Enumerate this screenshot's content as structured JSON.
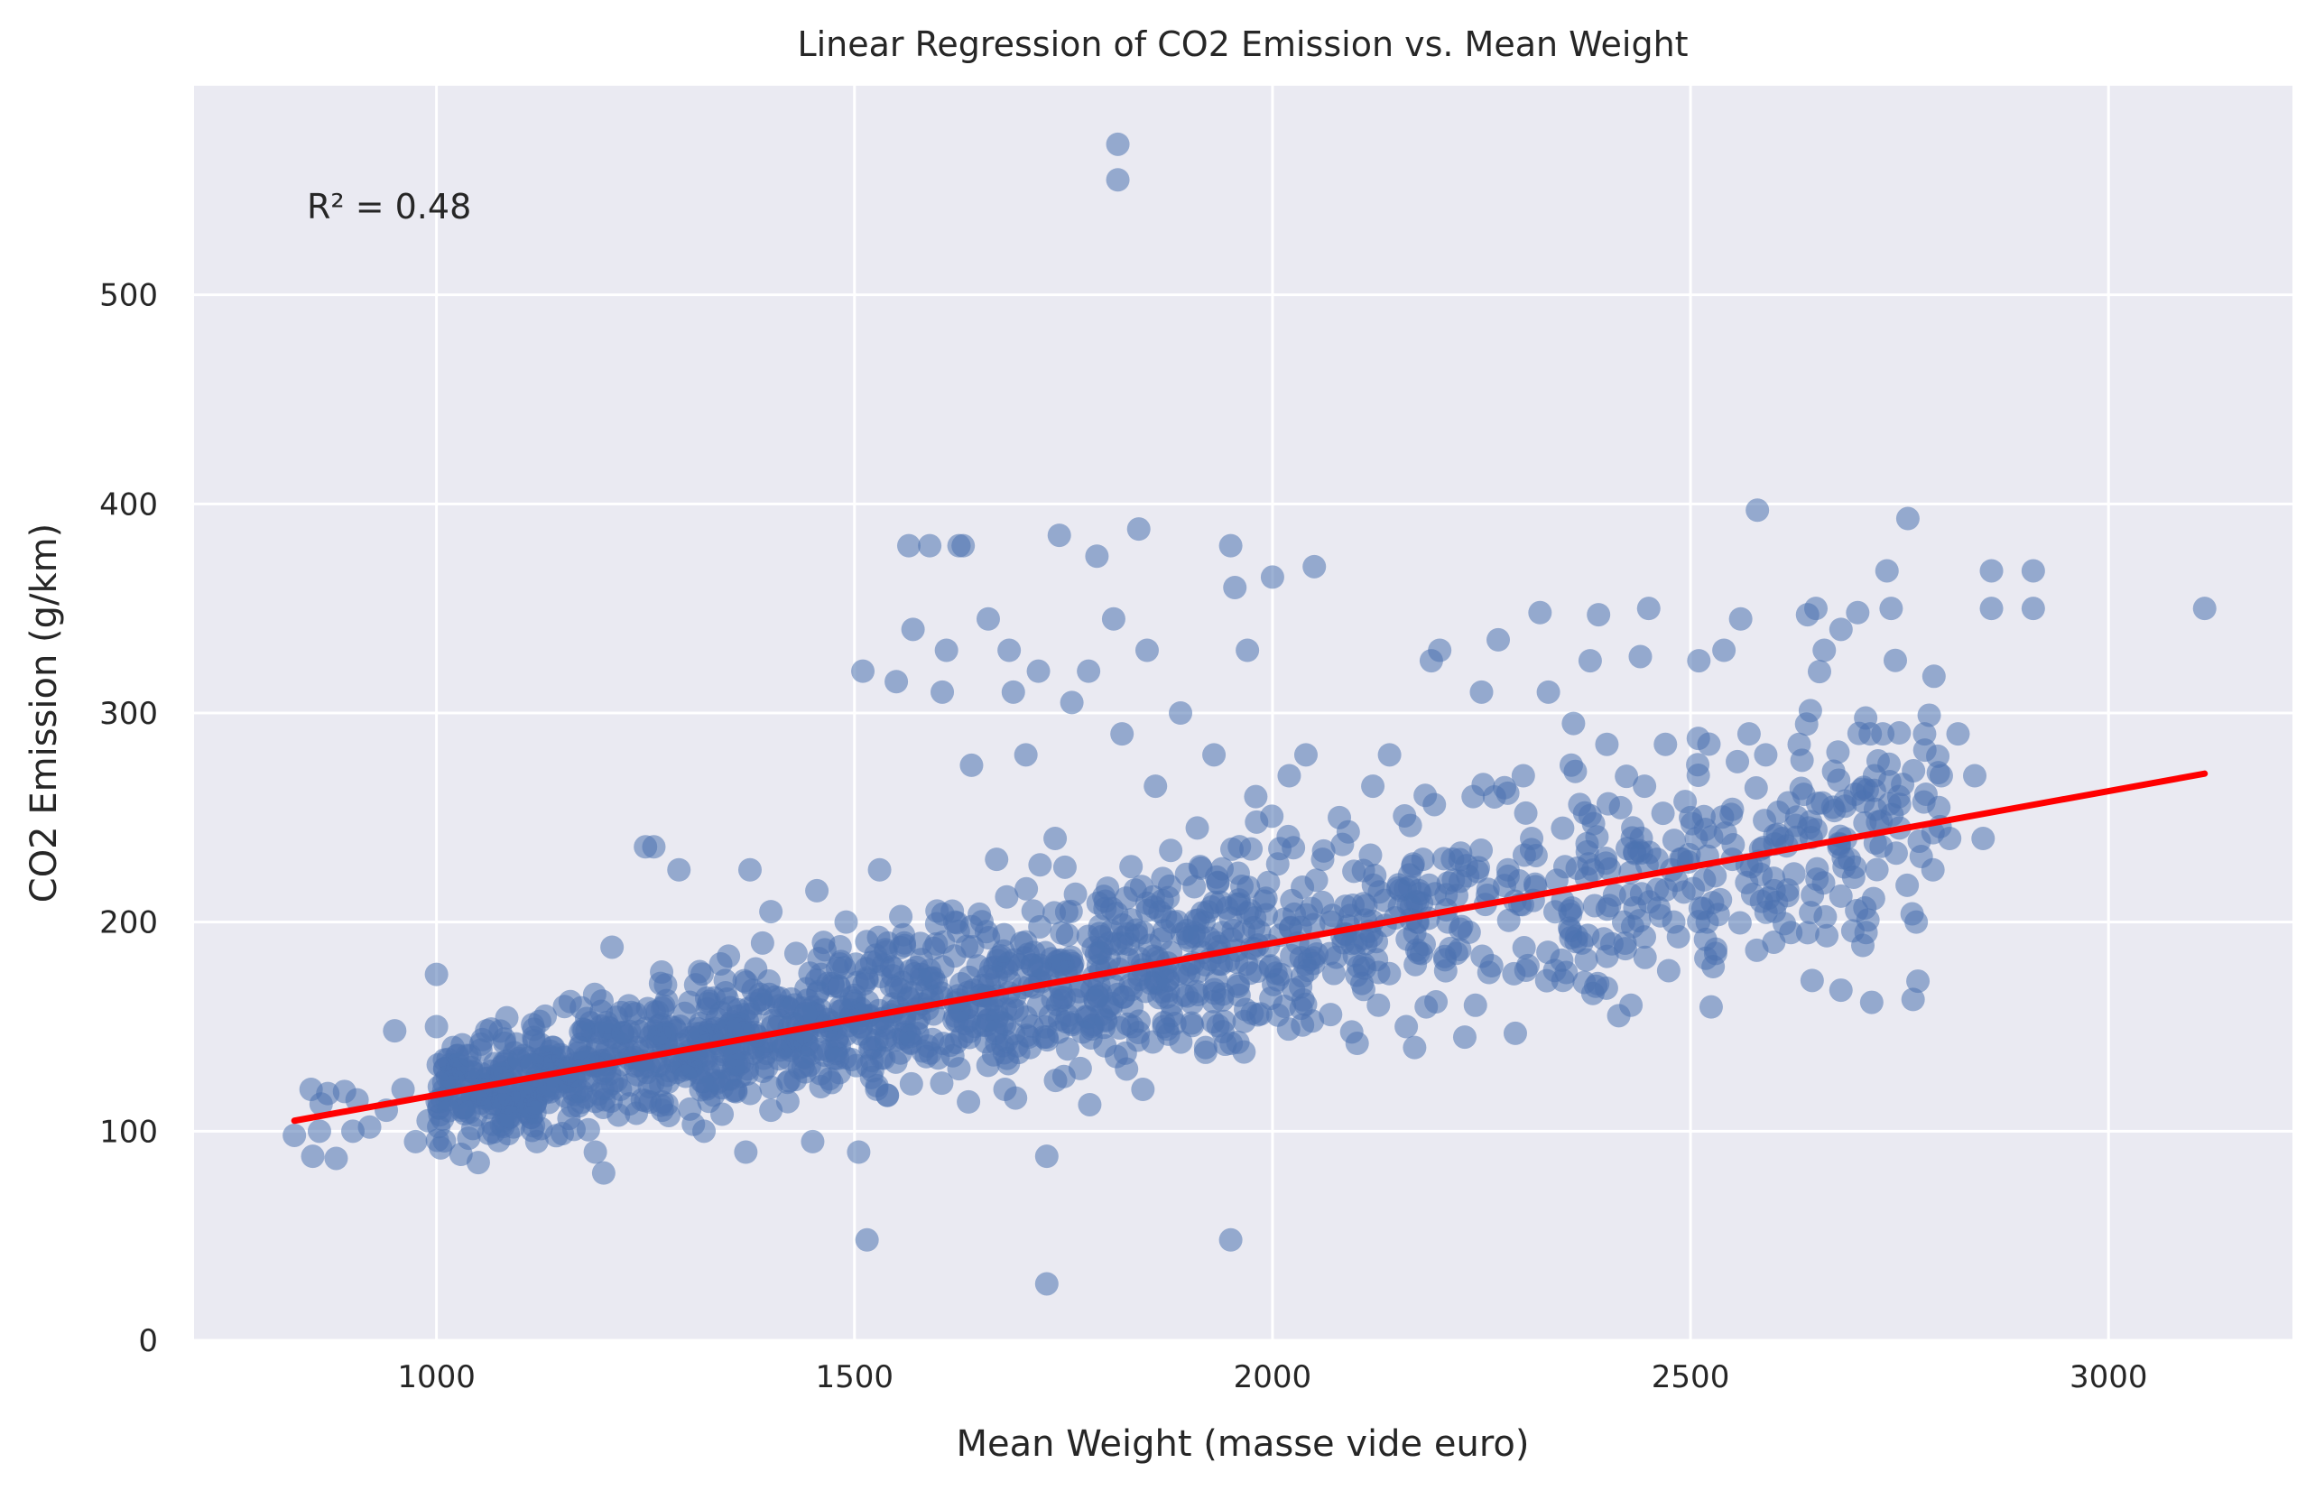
{
  "chart_data": {
    "type": "scatter",
    "title": "Linear Regression of CO2 Emission vs. Mean Weight",
    "xlabel": "Mean Weight (masse vide euro)",
    "ylabel": "CO2 Emission (g/km)",
    "xlim": [
      710,
      3220
    ],
    "ylim": [
      0,
      600
    ],
    "xticks": [
      1000,
      1500,
      2000,
      2500,
      3000
    ],
    "yticks": [
      0,
      100,
      200,
      300,
      400,
      500
    ],
    "grid": true,
    "annotation": "R² = 0.48",
    "colors": {
      "points": "#4c72b0",
      "regression": "#ff0000",
      "background": "#eaeaf2",
      "grid": "#ffffff",
      "text": "#262626"
    },
    "regression_line": {
      "x": [
        830,
        3115
      ],
      "y": [
        105,
        271
      ]
    },
    "points": [
      [
        830,
        98
      ],
      [
        850,
        120
      ],
      [
        852,
        88
      ],
      [
        860,
        100
      ],
      [
        862,
        113
      ],
      [
        870,
        118
      ],
      [
        880,
        87
      ],
      [
        890,
        119
      ],
      [
        900,
        100
      ],
      [
        905,
        115
      ],
      [
        920,
        102
      ],
      [
        940,
        110
      ],
      [
        950,
        148
      ],
      [
        960,
        120
      ],
      [
        975,
        95
      ],
      [
        990,
        105
      ],
      [
        1000,
        175
      ],
      [
        1000,
        150
      ],
      [
        1005,
        92
      ],
      [
        1010,
        130
      ],
      [
        1020,
        140
      ],
      [
        1030,
        110
      ],
      [
        1045,
        120
      ],
      [
        1050,
        85
      ],
      [
        1060,
        148
      ],
      [
        1070,
        120
      ],
      [
        1080,
        105
      ],
      [
        1090,
        130
      ],
      [
        1100,
        115
      ],
      [
        1110,
        135
      ],
      [
        1120,
        95
      ],
      [
        1130,
        155
      ],
      [
        1140,
        140
      ],
      [
        1150,
        125
      ],
      [
        1160,
        162
      ],
      [
        1170,
        112
      ],
      [
        1180,
        148
      ],
      [
        1190,
        90
      ],
      [
        1200,
        80
      ],
      [
        1200,
        132
      ],
      [
        1210,
        188
      ],
      [
        1220,
        120
      ],
      [
        1230,
        160
      ],
      [
        1240,
        140
      ],
      [
        1250,
        236
      ],
      [
        1260,
        236
      ],
      [
        1270,
        110
      ],
      [
        1280,
        150
      ],
      [
        1290,
        225
      ],
      [
        1300,
        130
      ],
      [
        1310,
        170
      ],
      [
        1320,
        100
      ],
      [
        1330,
        145
      ],
      [
        1340,
        180
      ],
      [
        1350,
        125
      ],
      [
        1360,
        155
      ],
      [
        1370,
        90
      ],
      [
        1375,
        225
      ],
      [
        1380,
        140
      ],
      [
        1390,
        190
      ],
      [
        1400,
        110
      ],
      [
        1400,
        205
      ],
      [
        1410,
        160
      ],
      [
        1420,
        135
      ],
      [
        1430,
        185
      ],
      [
        1440,
        150
      ],
      [
        1450,
        95
      ],
      [
        1455,
        215
      ],
      [
        1460,
        175
      ],
      [
        1470,
        125
      ],
      [
        1480,
        145
      ],
      [
        1490,
        200
      ],
      [
        1500,
        165
      ],
      [
        1505,
        90
      ],
      [
        1510,
        320
      ],
      [
        1515,
        48
      ],
      [
        1520,
        140
      ],
      [
        1530,
        225
      ],
      [
        1540,
        190
      ],
      [
        1550,
        315
      ],
      [
        1560,
        155
      ],
      [
        1565,
        380
      ],
      [
        1570,
        340
      ],
      [
        1580,
        175
      ],
      [
        1590,
        380
      ],
      [
        1600,
        135
      ],
      [
        1605,
        310
      ],
      [
        1610,
        330
      ],
      [
        1620,
        200
      ],
      [
        1625,
        380
      ],
      [
        1630,
        380
      ],
      [
        1640,
        275
      ],
      [
        1650,
        160
      ],
      [
        1660,
        345
      ],
      [
        1670,
        230
      ],
      [
        1680,
        120
      ],
      [
        1685,
        330
      ],
      [
        1690,
        310
      ],
      [
        1700,
        190
      ],
      [
        1705,
        280
      ],
      [
        1710,
        140
      ],
      [
        1720,
        320
      ],
      [
        1730,
        27
      ],
      [
        1730,
        88
      ],
      [
        1740,
        240
      ],
      [
        1745,
        385
      ],
      [
        1750,
        180
      ],
      [
        1760,
        305
      ],
      [
        1770,
        130
      ],
      [
        1780,
        320
      ],
      [
        1790,
        375
      ],
      [
        1800,
        210
      ],
      [
        1810,
        345
      ],
      [
        1815,
        572
      ],
      [
        1815,
        555
      ],
      [
        1820,
        290
      ],
      [
        1830,
        170
      ],
      [
        1840,
        388
      ],
      [
        1845,
        120
      ],
      [
        1850,
        330
      ],
      [
        1860,
        265
      ],
      [
        1870,
        150
      ],
      [
        1880,
        200
      ],
      [
        1890,
        300
      ],
      [
        1900,
        175
      ],
      [
        1910,
        245
      ],
      [
        1920,
        140
      ],
      [
        1930,
        280
      ],
      [
        1940,
        195
      ],
      [
        1950,
        48
      ],
      [
        1950,
        380
      ],
      [
        1955,
        360
      ],
      [
        1960,
        165
      ],
      [
        1970,
        330
      ],
      [
        1980,
        260
      ],
      [
        1990,
        210
      ],
      [
        2000,
        365
      ],
      [
        2010,
        175
      ],
      [
        2020,
        270
      ],
      [
        2030,
        190
      ],
      [
        2040,
        280
      ],
      [
        2050,
        370
      ],
      [
        2060,
        230
      ],
      [
        2070,
        200
      ],
      [
        2080,
        250
      ],
      [
        2100,
        190
      ],
      [
        2120,
        265
      ],
      [
        2140,
        280
      ],
      [
        2160,
        150
      ],
      [
        2170,
        140
      ],
      [
        2180,
        230
      ],
      [
        2190,
        325
      ],
      [
        2200,
        330
      ],
      [
        2210,
        200
      ],
      [
        2230,
        145
      ],
      [
        2240,
        260
      ],
      [
        2250,
        310
      ],
      [
        2270,
        335
      ],
      [
        2290,
        210
      ],
      [
        2300,
        270
      ],
      [
        2310,
        240
      ],
      [
        2320,
        348
      ],
      [
        2330,
        310
      ],
      [
        2340,
        220
      ],
      [
        2360,
        295
      ],
      [
        2370,
        190
      ],
      [
        2380,
        325
      ],
      [
        2390,
        347
      ],
      [
        2400,
        285
      ],
      [
        2420,
        200
      ],
      [
        2440,
        327
      ],
      [
        2445,
        265
      ],
      [
        2450,
        350
      ],
      [
        2460,
        230
      ],
      [
        2470,
        285
      ],
      [
        2480,
        200
      ],
      [
        2500,
        250
      ],
      [
        2510,
        325
      ],
      [
        2520,
        200
      ],
      [
        2530,
        185
      ],
      [
        2540,
        330
      ],
      [
        2550,
        230
      ],
      [
        2560,
        345
      ],
      [
        2570,
        290
      ],
      [
        2580,
        397
      ],
      [
        2590,
        280
      ],
      [
        2600,
        215
      ],
      [
        2610,
        240
      ],
      [
        2620,
        195
      ],
      [
        2630,
        285
      ],
      [
        2640,
        347
      ],
      [
        2650,
        350
      ],
      [
        2660,
        330
      ],
      [
        2680,
        340
      ],
      [
        2690,
        230
      ],
      [
        2700,
        348
      ],
      [
        2710,
        195
      ],
      [
        2715,
        290
      ],
      [
        2720,
        270
      ],
      [
        2730,
        290
      ],
      [
        2735,
        368
      ],
      [
        2740,
        350
      ],
      [
        2750,
        245
      ],
      [
        2760,
        393
      ],
      [
        2770,
        200
      ],
      [
        2780,
        290
      ],
      [
        2790,
        225
      ],
      [
        2800,
        270
      ],
      [
        2810,
        240
      ],
      [
        2820,
        290
      ],
      [
        2840,
        270
      ],
      [
        2850,
        240
      ],
      [
        2860,
        350
      ],
      [
        2860,
        368
      ],
      [
        2910,
        350
      ],
      [
        2910,
        368
      ],
      [
        3115,
        350
      ]
    ]
  }
}
